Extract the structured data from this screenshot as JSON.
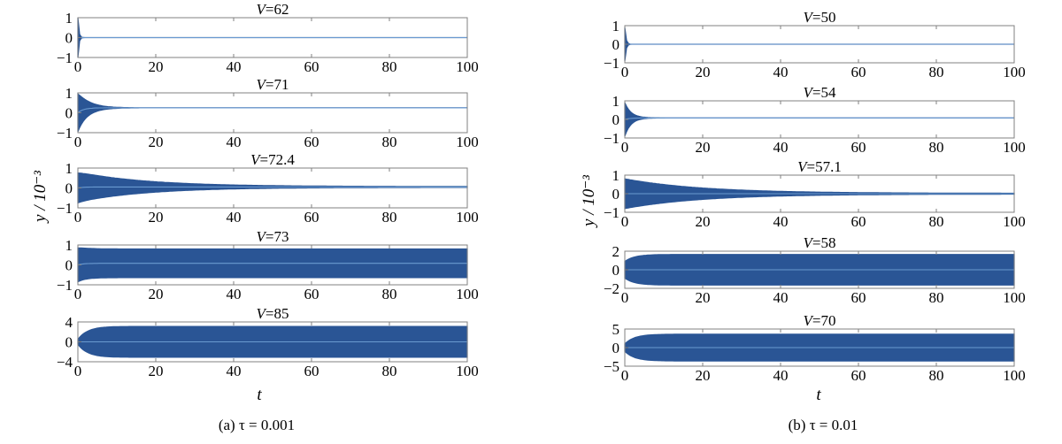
{
  "figure": {
    "ylabel": "y / 10⁻³",
    "xlabel": "t",
    "accent_color": "#2a5595",
    "axis_color": "#808080"
  },
  "chart_data": [
    {
      "type": "line",
      "caption": "(a) τ = 0.001",
      "xlabel": "t",
      "ylabel": "y / 10⁻³",
      "xlim": [
        0,
        100
      ],
      "xticks": [
        0,
        20,
        40,
        60,
        80,
        100
      ],
      "grid": false,
      "legend": "none",
      "series": [
        {
          "title": "V=62",
          "ylim": [
            -1,
            1
          ],
          "yticks": [
            "1",
            "0",
            "−1"
          ],
          "amp_start": 1.0,
          "decay_time": 0.25,
          "amp_end": 0.0,
          "offset": 0.0
        },
        {
          "title": "V=71",
          "ylim": [
            -1,
            1
          ],
          "yticks": [
            "1",
            "0",
            "−1"
          ],
          "amp_start": 0.95,
          "decay_time": 2.8,
          "amp_end": 0.0,
          "offset": 0.25
        },
        {
          "title": "V=72.4",
          "ylim": [
            -1,
            1
          ],
          "yticks": [
            "1",
            "0",
            "−1"
          ],
          "amp_start": 0.75,
          "decay_time": 18,
          "amp_end": 0.02,
          "offset": 0.05
        },
        {
          "title": "V=73",
          "ylim": [
            -1,
            1
          ],
          "yticks": [
            "1",
            "0",
            "−1"
          ],
          "amp_start": 0.85,
          "decay_time": 0,
          "amp_end": 0.72,
          "offset": 0.08
        },
        {
          "title": "V=85",
          "ylim": [
            -4,
            4
          ],
          "yticks": [
            "4",
            "0",
            "−4"
          ],
          "amp_start": 0.5,
          "decay_time": 0,
          "amp_end": 3.1,
          "offset": 0.0
        }
      ]
    },
    {
      "type": "line",
      "caption": "(b) τ = 0.01",
      "xlabel": "t",
      "ylabel": "y / 10⁻³",
      "xlim": [
        0,
        100
      ],
      "xticks": [
        0,
        20,
        40,
        60,
        80,
        100
      ],
      "grid": false,
      "legend": "none",
      "series": [
        {
          "title": "V=50",
          "ylim": [
            -1,
            1
          ],
          "yticks": [
            "1",
            "0",
            "−1"
          ],
          "amp_start": 0.9,
          "decay_time": 0.3,
          "amp_end": 0.0,
          "offset": 0.0
        },
        {
          "title": "V=54",
          "ylim": [
            -1,
            1
          ],
          "yticks": [
            "1",
            "0",
            "−1"
          ],
          "amp_start": 0.9,
          "decay_time": 1.6,
          "amp_end": 0.0,
          "offset": 0.08
        },
        {
          "title": "V=57.1",
          "ylim": [
            -1,
            1
          ],
          "yticks": [
            "1",
            "0",
            "−1"
          ],
          "amp_start": 0.8,
          "decay_time": 20,
          "amp_end": 0.02,
          "offset": 0.0
        },
        {
          "title": "V=58",
          "ylim": [
            -2,
            2
          ],
          "yticks": [
            "2",
            "0",
            "−2"
          ],
          "amp_start": 0.9,
          "decay_time": 0,
          "amp_end": 1.65,
          "offset": 0.0
        },
        {
          "title": "V=70",
          "ylim": [
            -5,
            5
          ],
          "yticks": [
            "5",
            "0",
            "−5"
          ],
          "amp_start": 1.0,
          "decay_time": 0,
          "amp_end": 3.6,
          "offset": 0.0
        }
      ]
    }
  ]
}
